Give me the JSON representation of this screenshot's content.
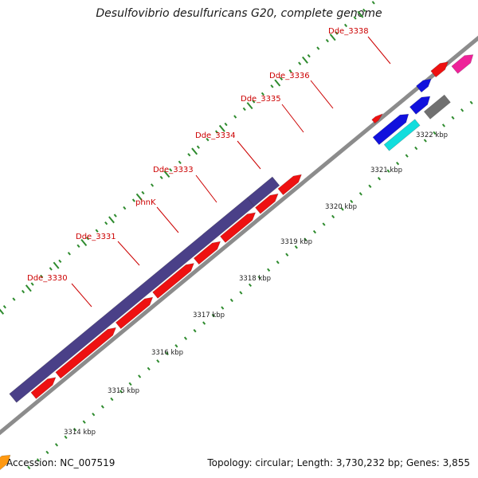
{
  "header": {
    "title": "Desulfovibrio desulfuricans G20, complete genome"
  },
  "footer": {
    "accession": "Accession: NC_007519",
    "summary": "Topology: circular; Length: 3,730,232 bp; Genes: 3,855"
  },
  "colors": {
    "backbone": "#8c8c8c",
    "tick": "#2e8b2e",
    "label": "#cc0000",
    "tick_label": "#222222",
    "gene_purple": "#4a4088",
    "gene_red": "#ee1111",
    "gene_blue": "#1111dd",
    "gene_cyan": "#11dddd",
    "gene_gray": "#707070",
    "gene_orange": "#ff9911",
    "gene_pink": "#ee2299"
  },
  "scale_labels": [
    "3314 kbp",
    "3315 kbp",
    "3316 kbp",
    "3317 kbp",
    "3318 kbp",
    "3319 kbp",
    "3320 kbp",
    "3321 kbp",
    "3322 kbp"
  ],
  "gene_labels": [
    "Dde_3330",
    "Dde_3331",
    "phnK",
    "Dde_3333",
    "Dde_3334",
    "Dde_3335",
    "Dde_3336",
    "Dde_3338"
  ]
}
